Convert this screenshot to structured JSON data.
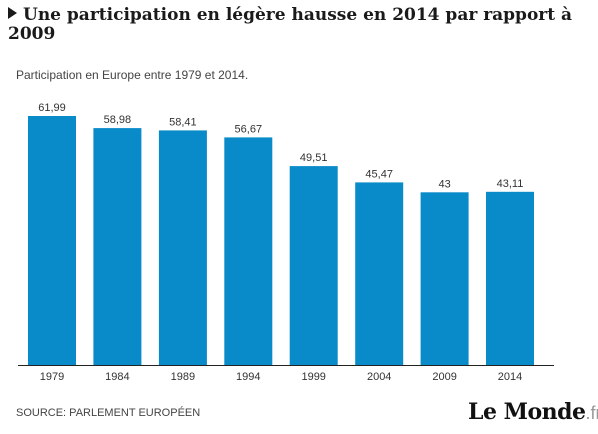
{
  "headline": "Une participation en légère hausse en 2014 par rapport à 2009",
  "subtitle": "Participation en Europe entre 1979 et 2014.",
  "source": "SOURCE: PARLEMENT EUROPÉEN",
  "logo": {
    "name": "Le Monde",
    "suffix": ".fr"
  },
  "colors": {
    "bar": "#0a8bc9",
    "axis": "#222222"
  },
  "chart_data": {
    "type": "bar",
    "title": "Une participation en légère hausse en 2014 par rapport à 2009",
    "subtitle": "Participation en Europe entre 1979 et 2014.",
    "categories": [
      "1979",
      "1984",
      "1989",
      "1994",
      "1999",
      "2004",
      "2009",
      "2014"
    ],
    "values": [
      61.99,
      58.98,
      58.41,
      56.67,
      49.51,
      45.47,
      43,
      43.11
    ],
    "value_labels": [
      "61,99",
      "58,98",
      "58,41",
      "56,67",
      "49,51",
      "45,47",
      "43",
      "43,11"
    ],
    "ylim": [
      0,
      61.99
    ],
    "grid": false,
    "legend": "none"
  }
}
